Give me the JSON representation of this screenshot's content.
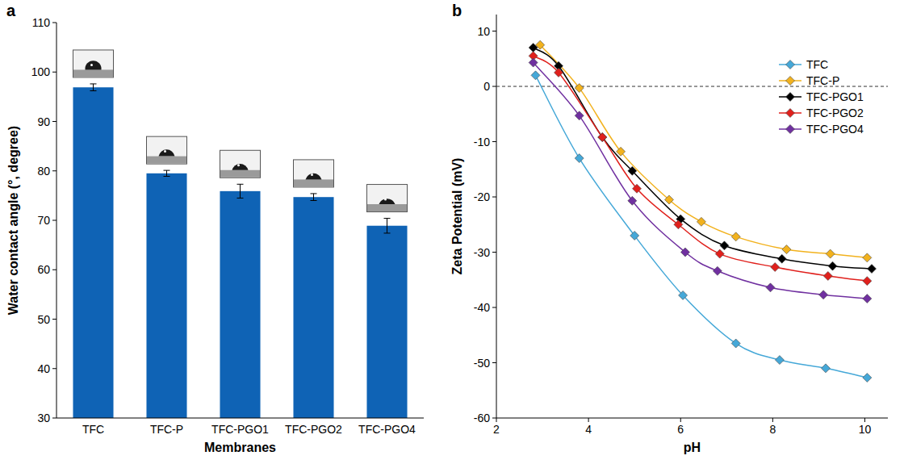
{
  "chart_data": [
    {
      "type": "bar",
      "title": "a",
      "x_label": "Membranes",
      "y_label": "Water contact angle (°, degree)",
      "categories": [
        "TFC",
        "TFC-P",
        "TFC-PGO1",
        "TFC-PGO2",
        "TFC-PGO4"
      ],
      "values": [
        96.9,
        79.5,
        75.9,
        74.7,
        68.9
      ],
      "errors": [
        0.7,
        0.6,
        1.4,
        0.7,
        1.5
      ],
      "color": "#0f63b5",
      "ylim": [
        30,
        110
      ],
      "yticks": [
        30,
        40,
        50,
        60,
        70,
        80,
        90,
        100,
        110
      ],
      "grid": false
    },
    {
      "type": "line",
      "title": "b",
      "x_label": "pH",
      "y_label": "Zeta Potential (mV)",
      "marker": "diamond",
      "line_style": "solid",
      "xlim": [
        2,
        10.5
      ],
      "xticks": [
        2,
        4,
        6,
        8,
        10
      ],
      "ylim": [
        -60,
        13
      ],
      "yticks": [
        -60,
        -50,
        -40,
        -30,
        -20,
        -10,
        0,
        10
      ],
      "hline": 0,
      "grid": false,
      "legend": "upper right",
      "series": [
        {
          "name": "TFC",
          "color": "#45a8d8",
          "x": [
            2.85,
            3.8,
            5.0,
            6.05,
            7.2,
            8.15,
            9.15,
            10.05
          ],
          "values": [
            2,
            -13,
            -27,
            -37.8,
            -46.5,
            -49.5,
            -51,
            -52.7
          ]
        },
        {
          "name": "TFC-P",
          "color": "#f2b21e",
          "x": [
            2.95,
            3.8,
            4.7,
            5.75,
            6.45,
            7.2,
            8.3,
            9.25,
            10.05
          ],
          "values": [
            7.5,
            -0.3,
            -11.8,
            -20.5,
            -24.5,
            -27.2,
            -29.5,
            -30.3,
            -31
          ]
        },
        {
          "name": "TFC-PGO1",
          "color": "#000000",
          "x": [
            2.8,
            3.35,
            4.3,
            4.95,
            6.0,
            6.95,
            8.2,
            9.3,
            10.15
          ],
          "values": [
            7,
            3.7,
            -9.2,
            -15.3,
            -24,
            -28.8,
            -31.2,
            -32.5,
            -33
          ]
        },
        {
          "name": "TFC-PGO2",
          "color": "#e0201c",
          "x": [
            2.8,
            3.35,
            4.3,
            5.05,
            5.95,
            6.85,
            8.05,
            9.2,
            10.05
          ],
          "values": [
            5.5,
            2.5,
            -9.2,
            -18.5,
            -25,
            -30.3,
            -32.7,
            -34.3,
            -35.2
          ]
        },
        {
          "name": "TFC-PGO4",
          "color": "#7030a0",
          "x": [
            2.8,
            3.8,
            4.95,
            6.1,
            6.8,
            7.95,
            9.1,
            10.05
          ],
          "values": [
            4.3,
            -5.3,
            -20.7,
            -30,
            -33.4,
            -36.4,
            -37.7,
            -38.4
          ]
        }
      ]
    }
  ]
}
